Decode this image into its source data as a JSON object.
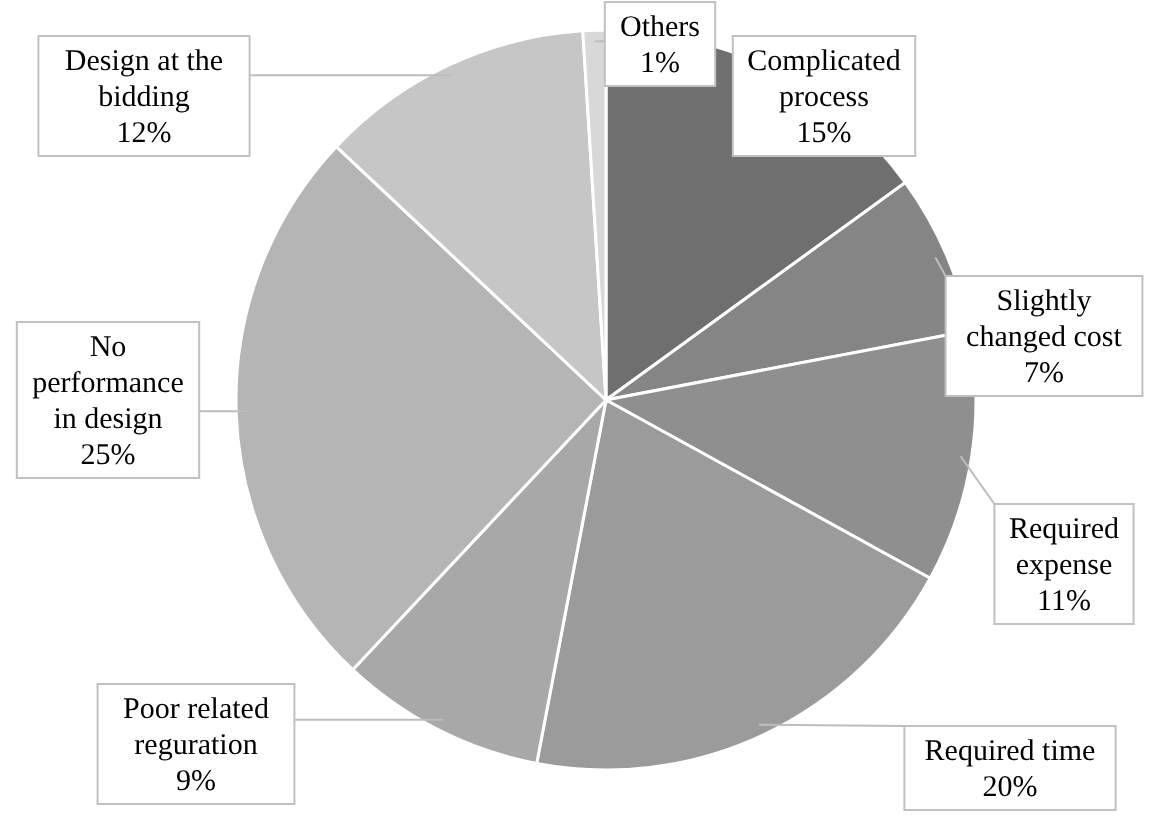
{
  "chart_data": {
    "type": "pie",
    "categories": [
      "Complicated process",
      "Slightly changed cost",
      "Required expense",
      "Required time",
      "Poor related reguration",
      "No performance in design",
      "Design at the bidding",
      "Others"
    ],
    "values": [
      15,
      7,
      11,
      20,
      9,
      25,
      12,
      1
    ],
    "value_labels": [
      "15%",
      "7%",
      "11%",
      "20%",
      "9%",
      "25%",
      "12%",
      "1%"
    ],
    "colors": [
      "#6f6f6f",
      "#858585",
      "#8f8f8f",
      "#9b9b9b",
      "#a8a8a8",
      "#b5b5b5",
      "#c6c6c6",
      "#d8d8d8"
    ]
  }
}
